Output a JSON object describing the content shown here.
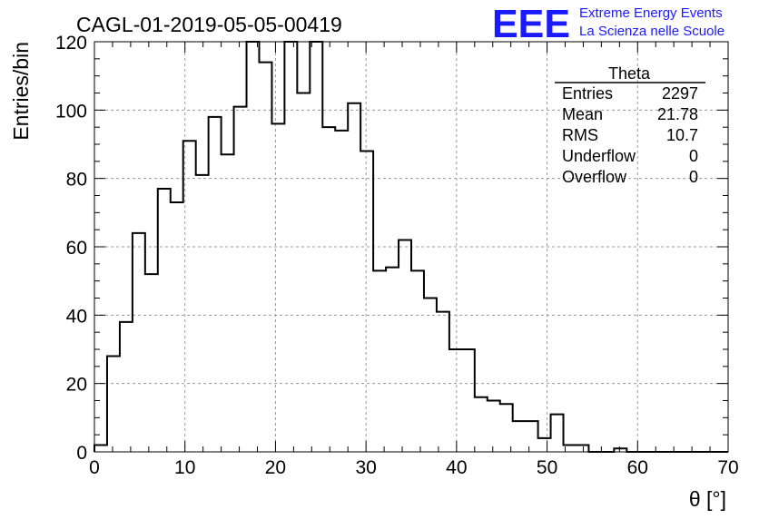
{
  "header": {
    "run_title": "CAGL-01-2019-05-05-00419",
    "logo": {
      "text": "EEE",
      "line1": "Extreme Energy Events",
      "line2": "La Scienza nelle Scuole",
      "color": "#1a1aff"
    }
  },
  "stats": {
    "title": "Theta",
    "rows": [
      {
        "label": "Entries",
        "value": "2297"
      },
      {
        "label": "Mean",
        "value": "21.78"
      },
      {
        "label": "RMS",
        "value": "10.7"
      },
      {
        "label": "Underflow",
        "value": "0"
      },
      {
        "label": "Overflow",
        "value": "0"
      }
    ]
  },
  "chart_data": {
    "type": "histogram",
    "xlabel": "θ [°]",
    "ylabel": "Entries/bin",
    "xlim": [
      0,
      70
    ],
    "ylim": [
      0,
      120
    ],
    "x_ticks": [
      0,
      10,
      20,
      30,
      40,
      50,
      60,
      70
    ],
    "y_ticks": [
      0,
      20,
      40,
      60,
      80,
      100,
      120
    ],
    "grid": true,
    "bin_width": 1.4,
    "bin_edges_start": 0,
    "values": [
      2,
      28,
      38,
      64,
      52,
      77,
      73,
      91,
      81,
      98,
      87,
      101,
      120,
      114,
      96,
      120,
      105,
      120,
      95,
      94,
      102,
      88,
      53,
      54,
      62,
      53,
      45,
      41,
      30,
      30,
      16,
      15,
      14,
      9,
      9,
      4,
      11,
      2,
      2,
      0,
      0,
      1,
      0,
      0,
      0,
      0,
      0,
      0,
      0,
      0
    ],
    "line_color": "#000000"
  }
}
